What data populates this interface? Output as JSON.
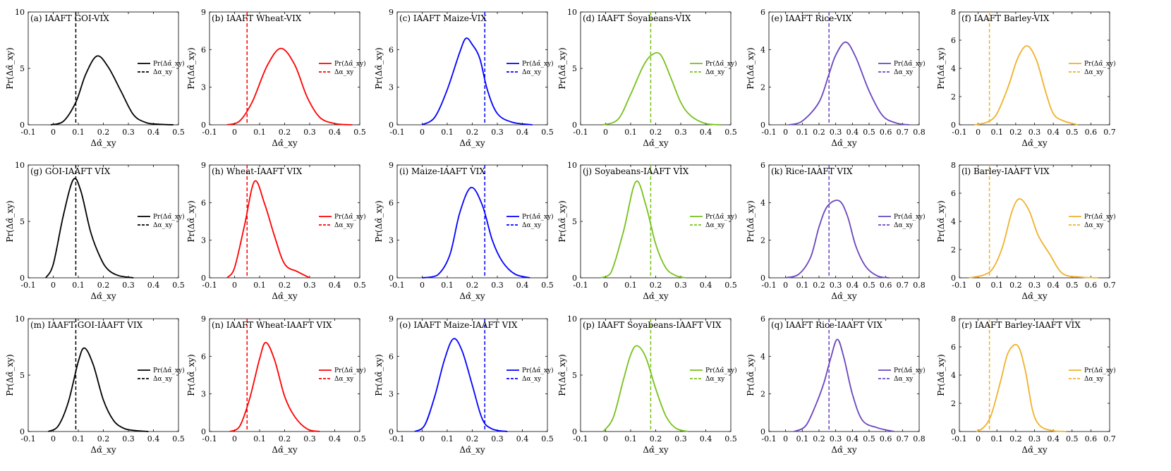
{
  "colors": {
    "GOI": "#000000",
    "Wheat": "#ff0000",
    "Maize": "#0000ff",
    "Soyabeans": "#77c11a",
    "Rice": "#6a45c0",
    "Barley": "#f0b12a"
  },
  "axis_labels": {
    "x": "Δα̂_xy",
    "y": "Pr(Δα̂_xy)"
  },
  "legend": {
    "pdf": "Pr(Δα̂_xy)",
    "threshold": "Δα_xy"
  },
  "chart_data": [
    {
      "type": "line",
      "panel": "a",
      "title": "(a) IAAFT GOI-VIX",
      "commodity": "GOI",
      "xlim": [
        -0.1,
        0.5
      ],
      "xticks": [
        -0.1,
        0,
        0.1,
        0.2,
        0.3,
        0.4,
        0.5
      ],
      "ylim": [
        0,
        10
      ],
      "yticks": [
        0,
        5,
        10
      ],
      "threshold": 0.09,
      "curve": {
        "x": [
          -0.01,
          0.04,
          0.09,
          0.13,
          0.175,
          0.22,
          0.27,
          0.32,
          0.37,
          0.42,
          0.48
        ],
        "y": [
          0,
          0.3,
          2,
          4.5,
          6.1,
          5.1,
          3,
          0.9,
          0.2,
          0.05,
          0
        ]
      }
    },
    {
      "type": "line",
      "panel": "b",
      "title": "(b) IAAFT Wheat-VIX",
      "commodity": "Wheat",
      "xlim": [
        -0.1,
        0.5
      ],
      "xticks": [
        -0.1,
        0,
        0.1,
        0.2,
        0.3,
        0.4,
        0.5
      ],
      "ylim": [
        0,
        9
      ],
      "yticks": [
        0,
        3,
        6,
        9
      ],
      "threshold": 0.05,
      "curve": {
        "x": [
          -0.03,
          0.02,
          0.07,
          0.13,
          0.185,
          0.24,
          0.29,
          0.34,
          0.4,
          0.47
        ],
        "y": [
          0,
          0.3,
          1.8,
          4.7,
          6.1,
          4.8,
          2.2,
          0.6,
          0.1,
          0
        ]
      }
    },
    {
      "type": "line",
      "panel": "c",
      "title": "(c) IAAFT Maize-VIX",
      "commodity": "Maize",
      "xlim": [
        -0.1,
        0.5
      ],
      "xticks": [
        -0.1,
        0,
        0.1,
        0.2,
        0.3,
        0.4,
        0.5
      ],
      "ylim": [
        0,
        9
      ],
      "yticks": [
        0,
        3,
        6,
        9
      ],
      "threshold": 0.25,
      "curve": {
        "x": [
          0,
          0.05,
          0.1,
          0.15,
          0.175,
          0.2,
          0.23,
          0.26,
          0.3,
          0.36,
          0.44
        ],
        "y": [
          0,
          0.6,
          2.8,
          5.8,
          6.9,
          6.4,
          5.3,
          2.8,
          0.9,
          0.2,
          0
        ]
      }
    },
    {
      "type": "line",
      "panel": "d",
      "title": "(d) IAAFT Soyabeans-VIX",
      "commodity": "Soyabeans",
      "xlim": [
        -0.1,
        0.5
      ],
      "xticks": [
        -0.1,
        0,
        0.1,
        0.2,
        0.3,
        0.4,
        0.5
      ],
      "ylim": [
        0,
        10
      ],
      "yticks": [
        0,
        5,
        10
      ],
      "threshold": 0.18,
      "curve": {
        "x": [
          -0.01,
          0.05,
          0.1,
          0.15,
          0.185,
          0.22,
          0.26,
          0.3,
          0.34,
          0.4,
          0.46
        ],
        "y": [
          0,
          0.5,
          2.7,
          5.2,
          6.2,
          6.2,
          4.2,
          2,
          0.8,
          0.1,
          0
        ]
      }
    },
    {
      "type": "line",
      "panel": "e",
      "title": "(e) IAAFT Rice-VIX",
      "commodity": "Rice",
      "xlim": [
        -0.1,
        0.8
      ],
      "xticks": [
        -0.1,
        0,
        0.1,
        0.2,
        0.3,
        0.4,
        0.5,
        0.6,
        0.7,
        0.8
      ],
      "ylim": [
        0,
        6
      ],
      "yticks": [
        0,
        2,
        4,
        6
      ],
      "threshold": 0.26,
      "curve": {
        "x": [
          0.02,
          0.1,
          0.2,
          0.26,
          0.3,
          0.36,
          0.42,
          0.5,
          0.58,
          0.66,
          0.74
        ],
        "y": [
          0,
          0.2,
          1.2,
          2.7,
          3.7,
          4.4,
          3.6,
          1.8,
          0.5,
          0.1,
          0
        ]
      }
    },
    {
      "type": "line",
      "panel": "f",
      "title": "(f) IAAFT Barley-VIX",
      "commodity": "Barley",
      "xlim": [
        -0.1,
        0.7
      ],
      "xticks": [
        -0.1,
        0,
        0.1,
        0.2,
        0.3,
        0.4,
        0.5,
        0.6,
        0.7
      ],
      "ylim": [
        0,
        8
      ],
      "yticks": [
        0,
        2,
        4,
        6,
        8
      ],
      "threshold": 0.06,
      "curve": {
        "x": [
          -0.02,
          0.05,
          0.1,
          0.16,
          0.21,
          0.26,
          0.31,
          0.36,
          0.4,
          0.45,
          0.53
        ],
        "y": [
          0,
          0.2,
          0.8,
          2.7,
          4.7,
          5.6,
          4.6,
          2.3,
          0.8,
          0.3,
          0
        ]
      }
    },
    {
      "type": "line",
      "panel": "g",
      "title": "(g) GOI-IAAFT VIX",
      "commodity": "GOI",
      "xlim": [
        -0.1,
        0.5
      ],
      "xticks": [
        -0.1,
        0,
        0.1,
        0.2,
        0.3,
        0.4,
        0.5
      ],
      "ylim": [
        0,
        10
      ],
      "yticks": [
        0,
        5,
        10
      ],
      "threshold": 0.09,
      "curve": {
        "x": [
          -0.03,
          0,
          0.04,
          0.08,
          0.11,
          0.15,
          0.19,
          0.22,
          0.26,
          0.32
        ],
        "y": [
          0,
          1.2,
          5.5,
          8.7,
          7.7,
          4,
          1.7,
          0.7,
          0.2,
          0
        ]
      }
    },
    {
      "type": "line",
      "panel": "h",
      "title": "(h) Wheat-IAAFT VIX",
      "commodity": "Wheat",
      "xlim": [
        -0.1,
        0.5
      ],
      "xticks": [
        -0.1,
        0,
        0.1,
        0.2,
        0.3,
        0.4,
        0.5
      ],
      "ylim": [
        0,
        9
      ],
      "yticks": [
        0,
        3,
        6,
        9
      ],
      "threshold": 0.05,
      "curve": {
        "x": [
          -0.03,
          0,
          0.04,
          0.08,
          0.12,
          0.16,
          0.2,
          0.25,
          0.3
        ],
        "y": [
          0,
          0.8,
          4.2,
          7.7,
          5.9,
          3.3,
          1.1,
          0.5,
          0
        ]
      }
    },
    {
      "type": "line",
      "panel": "i",
      "title": "(i) Maize-IAAFT VIX",
      "commodity": "Maize",
      "xlim": [
        -0.1,
        0.5
      ],
      "xticks": [
        -0.1,
        0,
        0.1,
        0.2,
        0.3,
        0.4,
        0.5
      ],
      "ylim": [
        0,
        9
      ],
      "yticks": [
        0,
        3,
        6,
        9
      ],
      "threshold": 0.25,
      "curve": {
        "x": [
          0,
          0.06,
          0.11,
          0.15,
          0.195,
          0.24,
          0.28,
          0.32,
          0.37,
          0.43
        ],
        "y": [
          0,
          0.2,
          1.8,
          5.2,
          7.2,
          5.8,
          3,
          1.3,
          0.3,
          0
        ]
      }
    },
    {
      "type": "line",
      "panel": "j",
      "title": "(j) Soyabeans-IAAFT VIX",
      "commodity": "Soyabeans",
      "xlim": [
        -0.1,
        0.5
      ],
      "xticks": [
        -0.1,
        0,
        0.1,
        0.2,
        0.3,
        0.4,
        0.5
      ],
      "ylim": [
        0,
        10
      ],
      "yticks": [
        0,
        5,
        10
      ],
      "threshold": 0.18,
      "curve": {
        "x": [
          -0.02,
          0.02,
          0.07,
          0.12,
          0.16,
          0.2,
          0.24,
          0.28,
          0.32
        ],
        "y": [
          0,
          0.4,
          4,
          8.5,
          6.5,
          3,
          0.9,
          0.2,
          0
        ]
      }
    },
    {
      "type": "line",
      "panel": "k",
      "title": "(k) Rice-IAAFT VIX",
      "commodity": "Rice",
      "xlim": [
        -0.1,
        0.8
      ],
      "xticks": [
        -0.1,
        0,
        0.1,
        0.2,
        0.3,
        0.4,
        0.5,
        0.6,
        0.7,
        0.8
      ],
      "ylim": [
        0,
        6
      ],
      "yticks": [
        0,
        2,
        4,
        6
      ],
      "threshold": 0.26,
      "curve": {
        "x": [
          0,
          0.08,
          0.15,
          0.2,
          0.25,
          0.32,
          0.37,
          0.42,
          0.48,
          0.55,
          0.62
        ],
        "y": [
          0,
          0.2,
          1.1,
          2.7,
          3.8,
          4.1,
          3.3,
          1.7,
          0.6,
          0.1,
          0
        ]
      }
    },
    {
      "type": "line",
      "panel": "l",
      "title": "(l) Barley-IAAFT VIX",
      "commodity": "Barley",
      "xlim": [
        -0.1,
        0.7
      ],
      "xticks": [
        -0.1,
        0,
        0.1,
        0.2,
        0.3,
        0.4,
        0.5,
        0.6,
        0.7
      ],
      "ylim": [
        0,
        8
      ],
      "yticks": [
        0,
        2,
        4,
        6,
        8
      ],
      "threshold": 0.06,
      "curve": {
        "x": [
          -0.05,
          0.03,
          0.08,
          0.13,
          0.18,
          0.22,
          0.27,
          0.32,
          0.38,
          0.45,
          0.55,
          0.64
        ],
        "y": [
          0,
          0.2,
          0.7,
          2.2,
          4.7,
          5.6,
          4.8,
          3,
          1.7,
          0.3,
          0.05,
          0
        ]
      }
    },
    {
      "type": "line",
      "panel": "m",
      "title": "(m) IAAFT GOI-IAAFT VIX",
      "commodity": "GOI",
      "xlim": [
        -0.1,
        0.5
      ],
      "xticks": [
        -0.1,
        0,
        0.1,
        0.2,
        0.3,
        0.4,
        0.5
      ],
      "ylim": [
        0,
        10
      ],
      "yticks": [
        0,
        5,
        10
      ],
      "threshold": 0.09,
      "curve": {
        "x": [
          -0.02,
          0.02,
          0.06,
          0.1,
          0.125,
          0.16,
          0.2,
          0.24,
          0.28,
          0.32,
          0.38
        ],
        "y": [
          0,
          0.5,
          2.6,
          6.2,
          7.4,
          5.9,
          2.8,
          1,
          0.3,
          0.1,
          0
        ]
      }
    },
    {
      "type": "line",
      "panel": "n",
      "title": "(n) IAAFT Wheat-IAAFT VIX",
      "commodity": "Wheat",
      "xlim": [
        -0.1,
        0.5
      ],
      "xticks": [
        -0.1,
        0,
        0.1,
        0.2,
        0.3,
        0.4,
        0.5
      ],
      "ylim": [
        0,
        9
      ],
      "yticks": [
        0,
        3,
        6,
        9
      ],
      "threshold": 0.05,
      "curve": {
        "x": [
          -0.02,
          0.02,
          0.06,
          0.1,
          0.125,
          0.16,
          0.2,
          0.24,
          0.29,
          0.34
        ],
        "y": [
          0,
          0.4,
          2.6,
          5.8,
          7.1,
          5.7,
          2.8,
          1.2,
          0.2,
          0
        ]
      }
    },
    {
      "type": "line",
      "panel": "o",
      "title": "(o) IAAFT Maize-IAAFT VIX",
      "commodity": "Maize",
      "xlim": [
        -0.1,
        0.5
      ],
      "xticks": [
        -0.1,
        0,
        0.1,
        0.2,
        0.3,
        0.4,
        0.5
      ],
      "ylim": [
        0,
        9
      ],
      "yticks": [
        0,
        3,
        6,
        9
      ],
      "threshold": 0.25,
      "curve": {
        "x": [
          -0.03,
          0.01,
          0.05,
          0.09,
          0.125,
          0.16,
          0.2,
          0.24,
          0.28,
          0.34
        ],
        "y": [
          0,
          0.5,
          2.8,
          5.8,
          7.4,
          6.4,
          3.7,
          1,
          0.2,
          0
        ]
      }
    },
    {
      "type": "line",
      "panel": "p",
      "title": "(p) IAAFT Soyabeans-IAAFT VIX",
      "commodity": "Soyabeans",
      "xlim": [
        -0.1,
        0.5
      ],
      "xticks": [
        -0.1,
        0,
        0.1,
        0.2,
        0.3,
        0.4,
        0.5
      ],
      "ylim": [
        0,
        10
      ],
      "yticks": [
        0,
        5,
        10
      ],
      "threshold": 0.18,
      "curve": {
        "x": [
          -0.01,
          0.03,
          0.07,
          0.1,
          0.125,
          0.16,
          0.2,
          0.24,
          0.28,
          0.33
        ],
        "y": [
          0,
          1.2,
          4.5,
          6.8,
          7.6,
          6.6,
          3.8,
          1.4,
          0.3,
          0
        ]
      }
    },
    {
      "type": "line",
      "panel": "q",
      "title": "(q) IAAFT Rice-IAAFT VIX",
      "commodity": "Rice",
      "xlim": [
        -0.1,
        0.8
      ],
      "xticks": [
        -0.1,
        0,
        0.1,
        0.2,
        0.3,
        0.4,
        0.5,
        0.6,
        0.7,
        0.8
      ],
      "ylim": [
        0,
        6
      ],
      "yticks": [
        0,
        2,
        4,
        6
      ],
      "threshold": 0.26,
      "curve": {
        "x": [
          0.05,
          0.12,
          0.18,
          0.23,
          0.27,
          0.31,
          0.35,
          0.4,
          0.46,
          0.55,
          0.65
        ],
        "y": [
          0,
          0.3,
          1.4,
          2.6,
          3.9,
          4.9,
          3.9,
          2,
          0.6,
          0.2,
          0
        ]
      }
    },
    {
      "type": "line",
      "panel": "r",
      "title": "(r) IAAFT Barley-IAAFT VIX",
      "commodity": "Barley",
      "xlim": [
        -0.1,
        0.7
      ],
      "xticks": [
        -0.1,
        0,
        0.1,
        0.2,
        0.3,
        0.4,
        0.5,
        0.6,
        0.7
      ],
      "ylim": [
        0,
        8
      ],
      "yticks": [
        0,
        2,
        4,
        6,
        8
      ],
      "threshold": 0.06,
      "curve": {
        "x": [
          -0.01,
          0.03,
          0.07,
          0.12,
          0.16,
          0.21,
          0.25,
          0.29,
          0.33,
          0.4,
          0.47
        ],
        "y": [
          0,
          0.3,
          1.2,
          3.6,
          5.6,
          6.1,
          4.4,
          1.5,
          0.4,
          0.05,
          0
        ]
      }
    }
  ]
}
